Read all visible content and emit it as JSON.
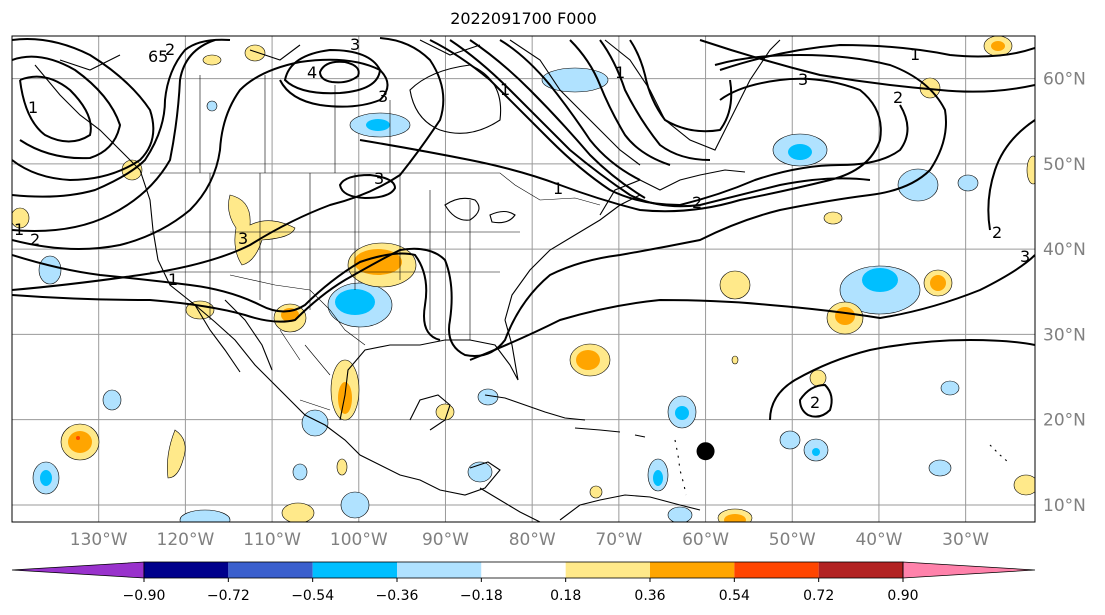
{
  "title": "2022091700 F000",
  "map": {
    "lon_range": [
      -140,
      -22
    ],
    "lat_range": [
      8,
      65
    ],
    "longitude_ticks": [
      "130°W",
      "120°W",
      "110°W",
      "100°W",
      "90°W",
      "80°W",
      "70°W",
      "60°W",
      "50°W",
      "40°W",
      "30°W"
    ],
    "latitude_ticks": [
      "60°N",
      "50°N",
      "40°N",
      "30°N",
      "20°N",
      "10°N"
    ],
    "grid": true,
    "contour_color": "#000000"
  },
  "colorbar": {
    "ticks": [
      "−0.90",
      "−0.72",
      "−0.54",
      "−0.36",
      "−0.18",
      "0.18",
      "0.36",
      "0.54",
      "0.72",
      "0.90"
    ],
    "colors": [
      "#9932cc",
      "#00008b",
      "#3a5fcd",
      "#00bfff",
      "#b0e2ff",
      "#ffffff",
      "#ffe98a",
      "#ffa500",
      "#ff4500",
      "#b22222",
      "#ff82ab"
    ],
    "extend": "both"
  },
  "contour_labels": [
    "65",
    "3",
    "4",
    "3",
    "1",
    "2",
    "1",
    "1",
    "3",
    "1",
    "3",
    "2",
    "1",
    "2",
    "1",
    "1",
    "2",
    "3",
    "2",
    "3",
    "2"
  ],
  "storm_marker": {
    "lon": -60,
    "lat": 16.3,
    "color": "#000000"
  }
}
